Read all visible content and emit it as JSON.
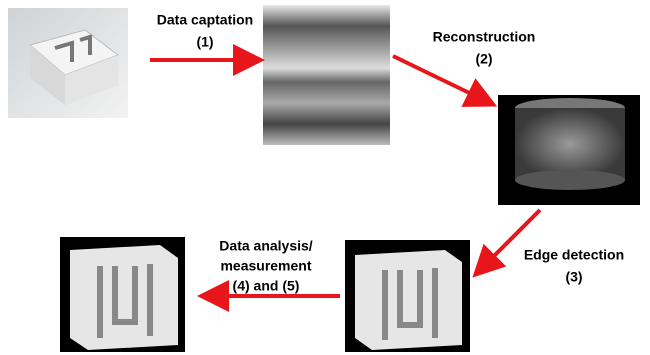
{
  "arrows": [
    {
      "lines": [
        "Data captation",
        "(1)"
      ]
    },
    {
      "lines": [
        "Reconstruction",
        "(2)"
      ]
    },
    {
      "lines": [
        "Edge detection",
        "(3)"
      ]
    },
    {
      "lines": [
        "Data analysis/",
        "measurement",
        "(4) and (5)"
      ]
    }
  ]
}
